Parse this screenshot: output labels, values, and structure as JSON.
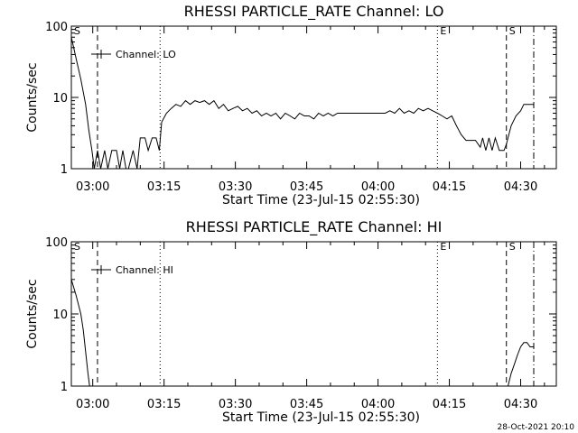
{
  "chart_data": [
    {
      "type": "line",
      "title": "RHESSI PARTICLE_RATE Channel: LO",
      "xlabel": "Start Time (23-Jul-15 02:55:30)",
      "ylabel": "Counts/sec",
      "y_scale": "log",
      "ylim": [
        1,
        100
      ],
      "y_ticks": [
        "1",
        "10",
        "100"
      ],
      "x_ticks": [
        "03:00",
        "03:15",
        "03:30",
        "03:45",
        "04:00",
        "04:15",
        "04:30"
      ],
      "legend": {
        "label": "Channel: LO",
        "position": "top-left"
      },
      "markers": [
        {
          "label": "S",
          "time": "02:55:30",
          "style": "none"
        },
        {
          "time": "03:01:00",
          "style": "dashed"
        },
        {
          "time": "03:14:10",
          "style": "dotted"
        },
        {
          "label": "E",
          "time": "04:12:30",
          "style": "dotted"
        },
        {
          "label": "S",
          "time": "04:27:00",
          "style": "dashed"
        },
        {
          "time": "04:32:45",
          "style": "dashdot"
        }
      ],
      "series": [
        {
          "name": "Channel: LO",
          "points": [
            [
              "02:55:30",
              70
            ],
            [
              "02:56:30",
              35
            ],
            [
              "02:57:30",
              18
            ],
            [
              "02:58:30",
              8
            ],
            [
              "02:59:10",
              3.5
            ],
            [
              "02:59:50",
              1.8
            ],
            [
              "03:00:20",
              1.0
            ],
            [
              "03:01:00",
              1.8
            ],
            [
              "03:01:40",
              1.0
            ],
            [
              "03:02:30",
              1.8
            ],
            [
              "03:03:10",
              1.0
            ],
            [
              "03:04:00",
              1.8
            ],
            [
              "03:05:00",
              1.8
            ],
            [
              "03:05:40",
              1.0
            ],
            [
              "03:06:20",
              1.8
            ],
            [
              "03:07:00",
              1.0
            ],
            [
              "03:07:30",
              1.0
            ],
            [
              "03:08:30",
              1.8
            ],
            [
              "03:09:20",
              1.0
            ],
            [
              "03:10:00",
              2.7
            ],
            [
              "03:11:00",
              2.7
            ],
            [
              "03:11:40",
              1.8
            ],
            [
              "03:12:30",
              2.7
            ],
            [
              "03:13:20",
              2.7
            ],
            [
              "03:14:00",
              1.8
            ],
            [
              "03:14:30",
              4.5
            ],
            [
              "03:15:30",
              6
            ],
            [
              "03:16:30",
              7
            ],
            [
              "03:17:30",
              8
            ],
            [
              "03:18:30",
              7.5
            ],
            [
              "03:19:30",
              9
            ],
            [
              "03:20:30",
              8
            ],
            [
              "03:21:30",
              9
            ],
            [
              "03:22:30",
              8.5
            ],
            [
              "03:23:30",
              9
            ],
            [
              "03:24:30",
              8
            ],
            [
              "03:25:30",
              9
            ],
            [
              "03:26:30",
              7
            ],
            [
              "03:27:30",
              8
            ],
            [
              "03:28:30",
              6.5
            ],
            [
              "03:29:30",
              7
            ],
            [
              "03:30:30",
              7.5
            ],
            [
              "03:31:30",
              6.5
            ],
            [
              "03:32:30",
              7
            ],
            [
              "03:33:30",
              6
            ],
            [
              "03:34:30",
              6.5
            ],
            [
              "03:35:30",
              5.5
            ],
            [
              "03:36:30",
              6
            ],
            [
              "03:37:30",
              5.5
            ],
            [
              "03:38:30",
              6
            ],
            [
              "03:39:30",
              5
            ],
            [
              "03:40:30",
              6
            ],
            [
              "03:41:30",
              5.5
            ],
            [
              "03:42:30",
              5
            ],
            [
              "03:43:30",
              6
            ],
            [
              "03:44:30",
              5.5
            ],
            [
              "03:45:30",
              5.5
            ],
            [
              "03:46:30",
              5
            ],
            [
              "03:47:30",
              6
            ],
            [
              "03:48:30",
              5.5
            ],
            [
              "03:49:30",
              6
            ],
            [
              "03:50:30",
              5.5
            ],
            [
              "03:51:30",
              6
            ],
            [
              "03:52:30",
              6
            ],
            [
              "03:53:30",
              6
            ],
            [
              "03:54:30",
              6
            ],
            [
              "03:55:30",
              6
            ],
            [
              "03:56:30",
              6
            ],
            [
              "03:57:30",
              6
            ],
            [
              "03:58:30",
              6
            ],
            [
              "03:59:30",
              6
            ],
            [
              "04:00:30",
              6
            ],
            [
              "04:01:30",
              6
            ],
            [
              "04:02:30",
              6.5
            ],
            [
              "04:03:30",
              6
            ],
            [
              "04:04:30",
              7
            ],
            [
              "04:05:30",
              6
            ],
            [
              "04:06:30",
              6.5
            ],
            [
              "04:07:30",
              6
            ],
            [
              "04:08:30",
              7
            ],
            [
              "04:09:30",
              6.5
            ],
            [
              "04:10:30",
              7
            ],
            [
              "04:11:30",
              6.5
            ],
            [
              "04:12:30",
              6
            ],
            [
              "04:13:30",
              5.5
            ],
            [
              "04:14:30",
              5
            ],
            [
              "04:15:30",
              5.5
            ],
            [
              "04:16:30",
              4
            ],
            [
              "04:17:30",
              3
            ],
            [
              "04:18:30",
              2.5
            ],
            [
              "04:19:30",
              2.5
            ],
            [
              "04:20:30",
              2.5
            ],
            [
              "04:21:30",
              2.0
            ],
            [
              "04:22:00",
              2.7
            ],
            [
              "04:22:40",
              1.8
            ],
            [
              "04:23:20",
              2.7
            ],
            [
              "04:24:00",
              1.8
            ],
            [
              "04:24:40",
              2.7
            ],
            [
              "04:25:30",
              1.8
            ],
            [
              "04:26:30",
              1.8
            ],
            [
              "04:27:00",
              2.2
            ],
            [
              "04:28:00",
              4
            ],
            [
              "04:29:00",
              5.5
            ],
            [
              "04:30:00",
              6.5
            ],
            [
              "04:30:40",
              8
            ],
            [
              "04:31:40",
              8
            ],
            [
              "04:32:40",
              8
            ]
          ]
        }
      ]
    },
    {
      "type": "line",
      "title": "RHESSI PARTICLE_RATE Channel: HI",
      "xlabel": "Start Time (23-Jul-15 02:55:30)",
      "ylabel": "Counts/sec",
      "y_scale": "log",
      "ylim": [
        1,
        100
      ],
      "y_ticks": [
        "1",
        "10",
        "100"
      ],
      "x_ticks": [
        "03:00",
        "03:15",
        "03:30",
        "03:45",
        "04:00",
        "04:15",
        "04:30"
      ],
      "legend": {
        "label": "Channel: HI",
        "position": "top-left"
      },
      "markers": [
        {
          "label": "S",
          "time": "02:55:30",
          "style": "none"
        },
        {
          "time": "03:01:00",
          "style": "dashed"
        },
        {
          "time": "03:14:10",
          "style": "dotted"
        },
        {
          "label": "E",
          "time": "04:12:30",
          "style": "dotted"
        },
        {
          "label": "S",
          "time": "04:27:00",
          "style": "dashed"
        },
        {
          "time": "04:32:45",
          "style": "dashdot"
        }
      ],
      "series": [
        {
          "name": "Channel: HI",
          "points": [
            [
              "02:55:30",
              30
            ],
            [
              "02:56:30",
              18
            ],
            [
              "02:57:30",
              10
            ],
            [
              "02:58:00",
              6
            ],
            [
              "02:58:30",
              3
            ],
            [
              "02:59:00",
              1.5
            ],
            [
              "02:59:20",
              1.0
            ]
          ]
        },
        {
          "name": "Channel: HI",
          "points": [
            [
              "04:27:20",
              1.0
            ],
            [
              "04:28:00",
              1.5
            ],
            [
              "04:28:40",
              2
            ],
            [
              "04:29:20",
              2.7
            ],
            [
              "04:30:00",
              3.5
            ],
            [
              "04:30:40",
              4
            ],
            [
              "04:31:20",
              4
            ],
            [
              "04:32:00",
              3.5
            ],
            [
              "04:32:40",
              3.5
            ]
          ]
        }
      ]
    }
  ],
  "footer": {
    "timestamp": "28-Oct-2021 20:10"
  }
}
